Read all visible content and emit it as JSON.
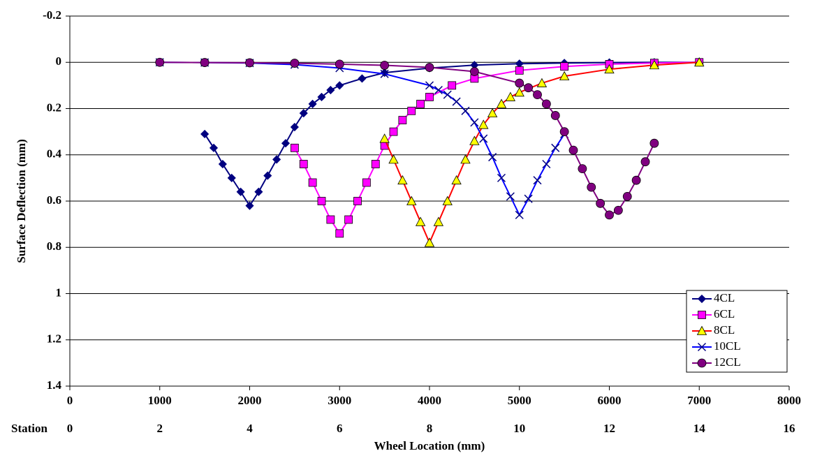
{
  "chart_data": {
    "type": "line",
    "y_title": "Surface Deflection (mm)",
    "x_title": "Wheel Location (mm)",
    "x2_title": "Station",
    "xlim": [
      0,
      8000
    ],
    "xticks": [
      0,
      1000,
      2000,
      3000,
      4000,
      5000,
      6000,
      7000,
      8000
    ],
    "x2lim": [
      0,
      16
    ],
    "x2ticks": [
      0,
      2,
      4,
      6,
      8,
      10,
      12,
      14,
      16
    ],
    "ylim": [
      -0.2,
      1.4
    ],
    "y_reversed": true,
    "yticks": [
      -0.2,
      0,
      0.2,
      0.4,
      0.6,
      0.8,
      1,
      1.2,
      1.4
    ],
    "grid": true,
    "legend": "lower right",
    "series": [
      {
        "name": "4CL",
        "color": "#000080",
        "marker_fill": "#000080",
        "marker": "diamond",
        "x": [
          1500,
          1600,
          1700,
          1800,
          1900,
          2000,
          2100,
          2200,
          2300,
          2400,
          2500,
          2600,
          2700,
          2800,
          2900,
          3000,
          3250,
          3500,
          4000,
          4500,
          5000,
          5500,
          6000,
          6500,
          7000
        ],
        "values": [
          0.31,
          0.37,
          0.44,
          0.5,
          0.56,
          0.62,
          0.56,
          0.49,
          0.42,
          0.35,
          0.28,
          0.22,
          0.18,
          0.15,
          0.12,
          0.1,
          0.07,
          0.045,
          0.025,
          0.012,
          0.006,
          0.003,
          0.001,
          0,
          0
        ]
      },
      {
        "name": "6CL",
        "color": "#ff00ff",
        "marker_fill": "#ff00ff",
        "marker": "square",
        "x": [
          2500,
          2600,
          2700,
          2800,
          2900,
          3000,
          3100,
          3200,
          3300,
          3400,
          3500,
          3600,
          3700,
          3800,
          3900,
          4000,
          4250,
          4500,
          5000,
          5500,
          6000,
          6500,
          7000
        ],
        "values": [
          0.37,
          0.44,
          0.52,
          0.6,
          0.68,
          0.74,
          0.68,
          0.6,
          0.52,
          0.44,
          0.36,
          0.3,
          0.25,
          0.21,
          0.18,
          0.15,
          0.1,
          0.07,
          0.035,
          0.018,
          0.008,
          0.003,
          0
        ]
      },
      {
        "name": "8CL",
        "color": "#ff0000",
        "marker_fill": "#ffff00",
        "marker": "triangle",
        "x": [
          3500,
          3600,
          3700,
          3800,
          3900,
          4000,
          4100,
          4200,
          4300,
          4400,
          4500,
          4600,
          4700,
          4800,
          4900,
          5000,
          5250,
          5500,
          6000,
          6500,
          7000
        ],
        "values": [
          0.33,
          0.42,
          0.51,
          0.6,
          0.69,
          0.78,
          0.69,
          0.6,
          0.51,
          0.42,
          0.34,
          0.27,
          0.22,
          0.18,
          0.15,
          0.13,
          0.09,
          0.06,
          0.03,
          0.012,
          0
        ]
      },
      {
        "name": "10CL",
        "color": "#0000ff",
        "marker_fill": "#000080",
        "marker": "x",
        "x": [
          1000,
          1500,
          2000,
          2500,
          3000,
          3500,
          4000,
          4100,
          4200,
          4300,
          4400,
          4500,
          4600,
          4700,
          4800,
          4900,
          5000,
          5100,
          5200,
          5300,
          5400,
          5500
        ],
        "values": [
          0,
          0.001,
          0.003,
          0.01,
          0.025,
          0.05,
          0.1,
          0.12,
          0.14,
          0.17,
          0.21,
          0.26,
          0.33,
          0.41,
          0.5,
          0.58,
          0.66,
          0.59,
          0.51,
          0.44,
          0.37,
          0.31
        ]
      },
      {
        "name": "12CL",
        "color": "#800080",
        "marker_fill": "#800080",
        "marker": "circle",
        "x": [
          1000,
          1500,
          2000,
          2500,
          3000,
          3500,
          4000,
          4500,
          5000,
          5100,
          5200,
          5300,
          5400,
          5500,
          5600,
          5700,
          5800,
          5900,
          6000,
          6100,
          6200,
          6300,
          6400,
          6500
        ],
        "values": [
          0,
          0.001,
          0.002,
          0.004,
          0.008,
          0.013,
          0.022,
          0.04,
          0.09,
          0.11,
          0.14,
          0.18,
          0.23,
          0.3,
          0.38,
          0.46,
          0.54,
          0.61,
          0.66,
          0.64,
          0.58,
          0.51,
          0.43,
          0.35
        ]
      }
    ]
  }
}
